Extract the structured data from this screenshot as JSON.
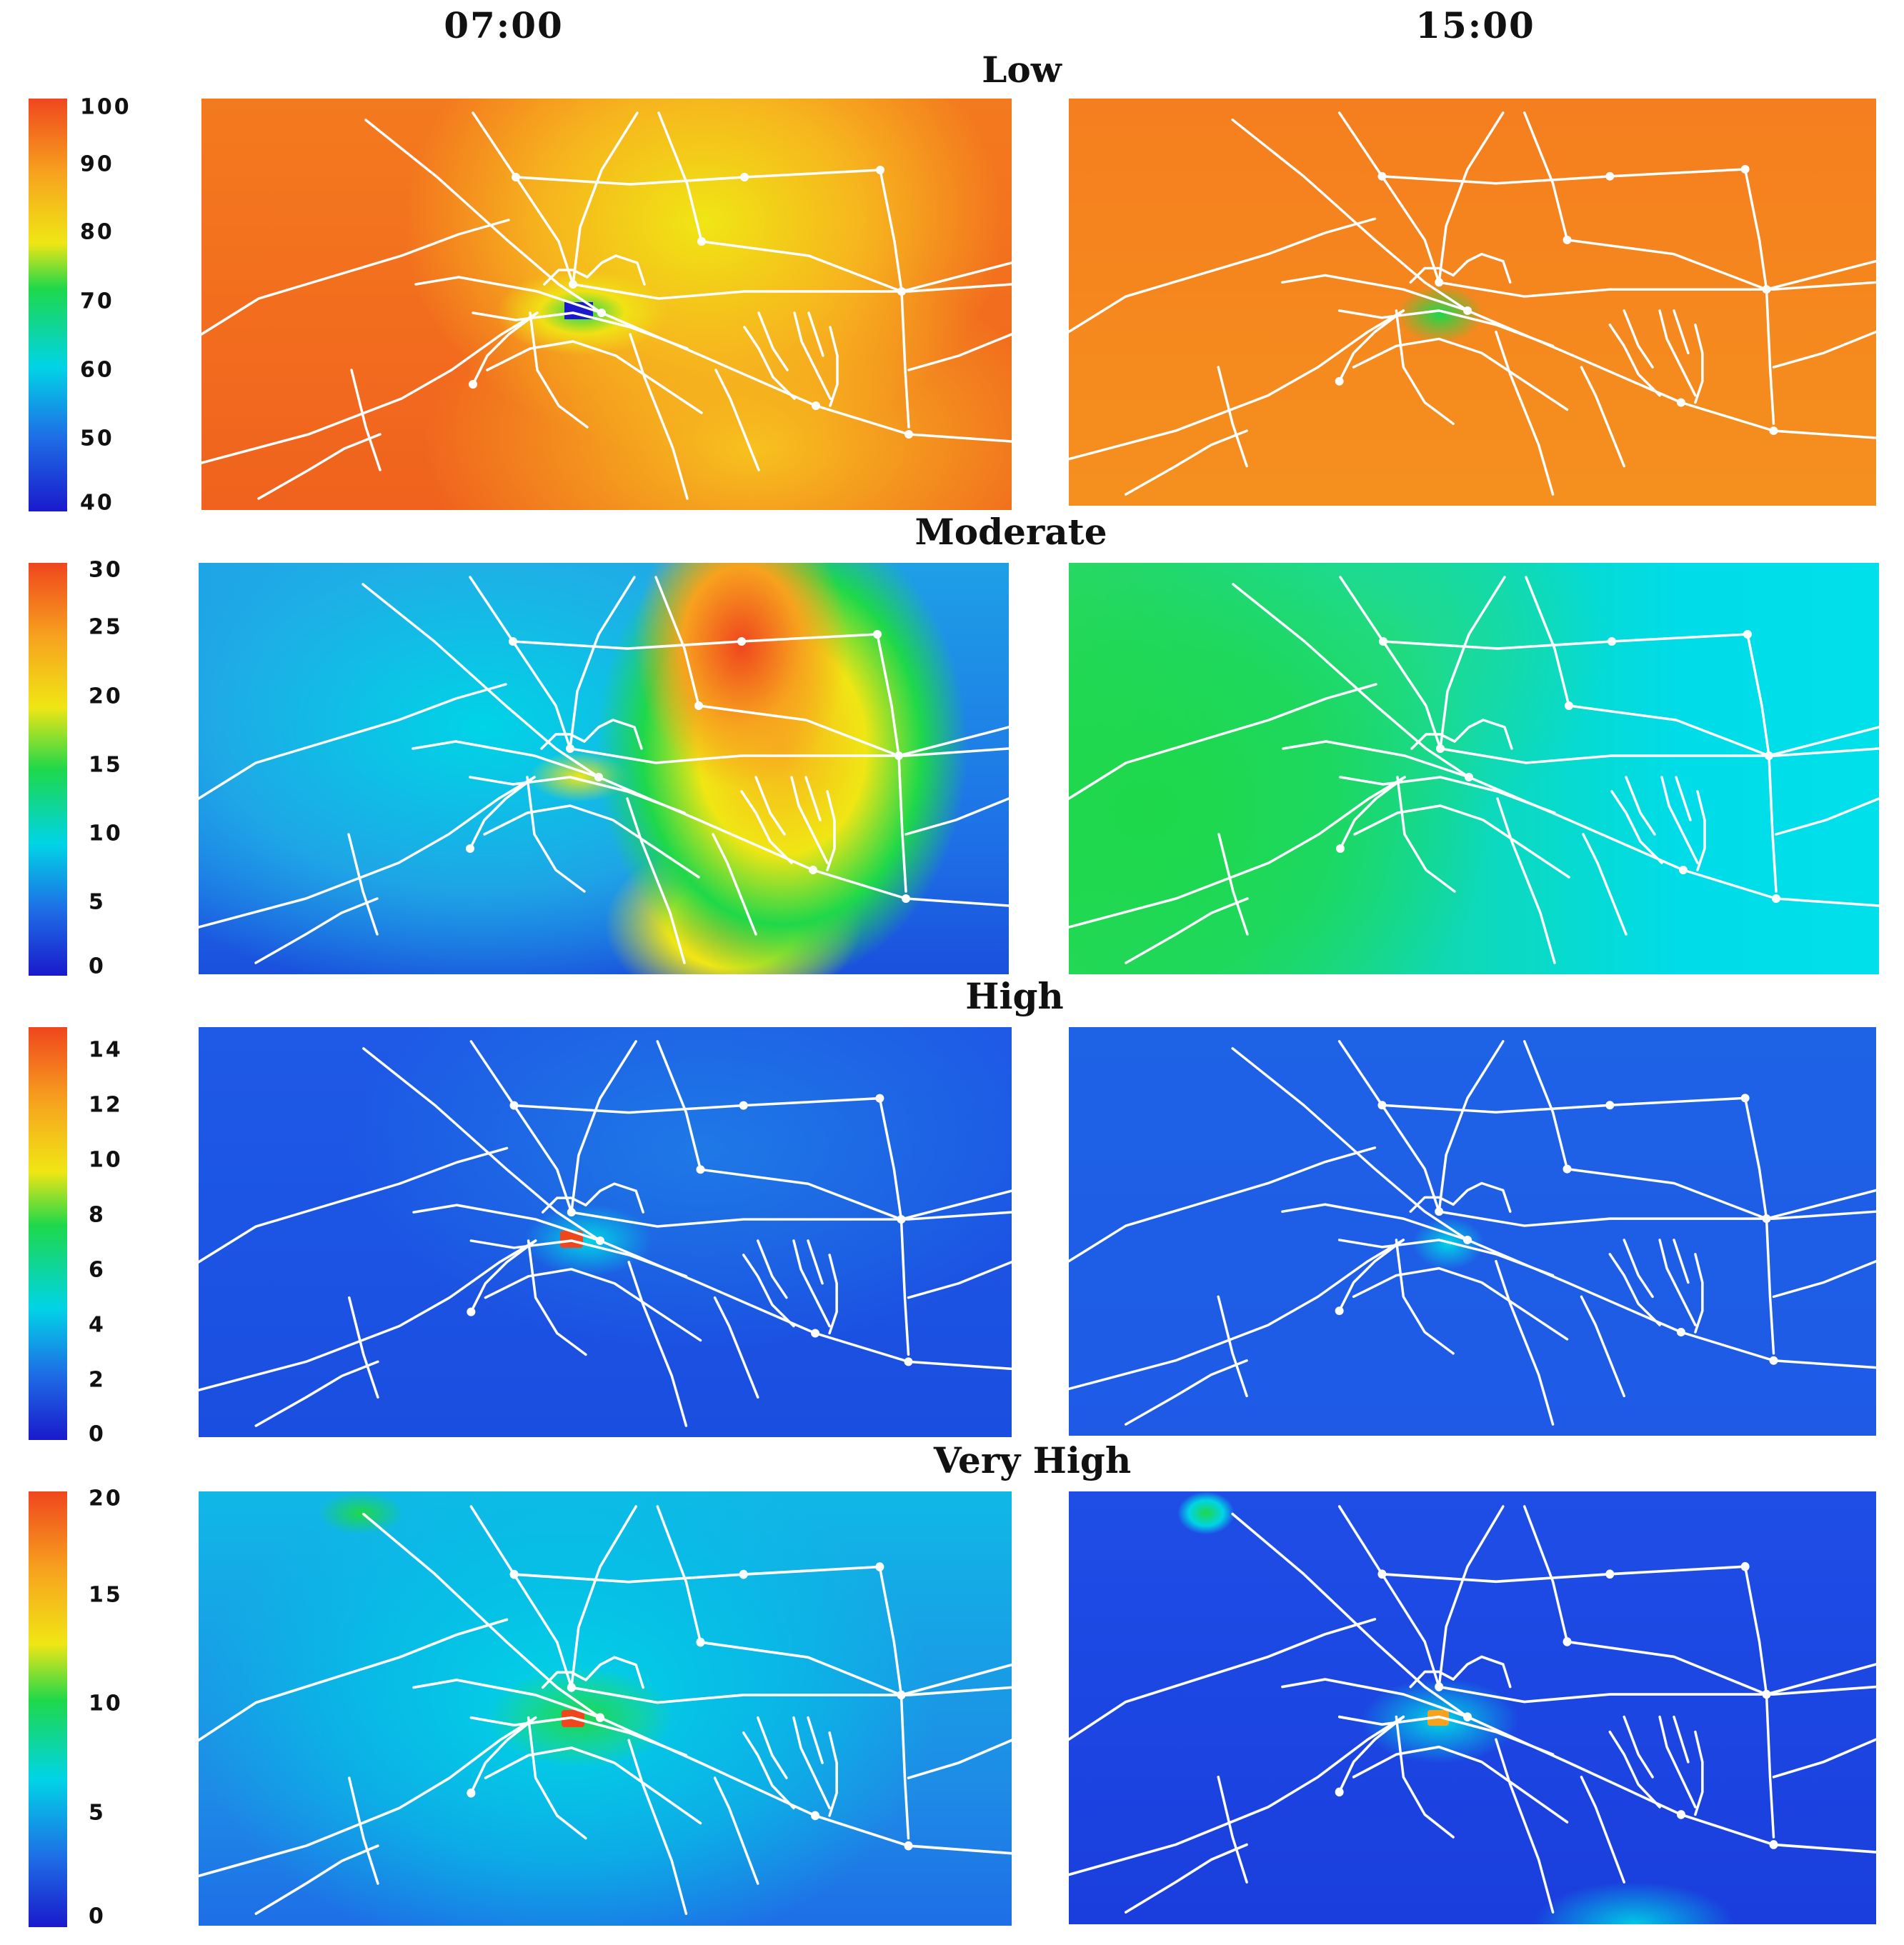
{
  "columns": [
    "07:00",
    "15:00"
  ],
  "rows": [
    {
      "title": "Low",
      "scale": {
        "ticks": [
          "100",
          "90",
          "80",
          "70",
          "60",
          "50",
          "40"
        ],
        "min": 40,
        "max": 100
      }
    },
    {
      "title": "Moderate",
      "scale": {
        "ticks": [
          "30",
          "25",
          "20",
          "15",
          "10",
          "5",
          "0"
        ],
        "min": 0,
        "max": 30
      }
    },
    {
      "title": "High",
      "scale": {
        "ticks": [
          "14",
          "12",
          "10",
          "8",
          "6",
          "4",
          "2",
          "0"
        ],
        "min": 0,
        "max": 15
      }
    },
    {
      "title": "Very High",
      "scale": {
        "ticks": [
          "20",
          "15",
          "10",
          "5",
          "0"
        ],
        "min": 0,
        "max": 20
      }
    }
  ],
  "colormap": [
    "#1a1acc",
    "#1e6ee6",
    "#00d4e6",
    "#1ed84a",
    "#f0e614",
    "#f7a21e",
    "#f0461e"
  ],
  "road_color": "#ffffff"
}
